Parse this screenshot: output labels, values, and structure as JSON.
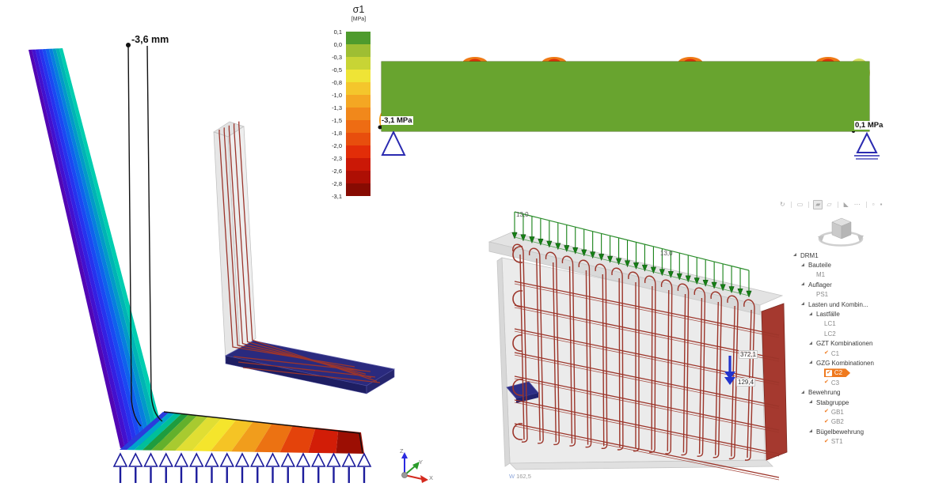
{
  "window": {
    "background": "#ffffff"
  },
  "legend": {
    "title": "σ1",
    "unit": "[MPa]",
    "labels": [
      "0,1",
      "0,0",
      "-0,3",
      "-0,5",
      "-0,8",
      "-1,0",
      "-1,3",
      "-1,5",
      "-1,8",
      "-2,0",
      "-2,3",
      "-2,6",
      "-2,8",
      "-3,1"
    ],
    "band_colors": [
      "#4e9b2d",
      "#9ebe33",
      "#c8d435",
      "#efe436",
      "#f4c62c",
      "#f4a723",
      "#f1881b",
      "#ee6c13",
      "#e84e0d",
      "#e22d08",
      "#cb1806",
      "#ae0f04",
      "#870b02"
    ]
  },
  "deformation_view": {
    "annotation": "-3,6 mm",
    "wall_band_colors": [
      "#5206b4",
      "#4310ce",
      "#3420e2",
      "#2633ee",
      "#1a49f2",
      "#0f62ec",
      "#077ede",
      "#029ac8",
      "#00b4b4",
      "#00cdb0"
    ],
    "base_band_colors": [
      "#2a3bdc",
      "#00a4cc",
      "#00bf9a",
      "#1f9c3e",
      "#63b02c",
      "#a8ca30",
      "#e0de33",
      "#f5e52c",
      "#f5c425",
      "#f19d1c",
      "#ec7212",
      "#e4430b",
      "#d21d07",
      "#9c0e03"
    ],
    "base_band_widths": [
      0.03,
      0.03,
      0.033,
      0.036,
      0.044,
      0.055,
      0.068,
      0.075,
      0.085,
      0.095,
      0.105,
      0.115,
      0.114,
      0.115
    ],
    "support": {
      "color": "#1c1c9c",
      "count": 17
    }
  },
  "model_view": {
    "body_color": "#ededed",
    "edge_color": "#bdbdbd",
    "rebar_color": "#9b352c",
    "plate_color": "#2a2a7e",
    "rebar_count": 5
  },
  "beam_view": {
    "min_label": "-3,1 MPa",
    "max_label": "0,1 MPa",
    "body_color": "#68a42f",
    "rebar_color": "#b23430",
    "hole_count": 6,
    "support_color": "#2a2ab0"
  },
  "wall_view": {
    "load_label": "13,0",
    "load_label2": "13,0",
    "load_color": "#158015",
    "load_arrow_count": 28,
    "reaction_labels": {
      "top": "372,1",
      "bottom": "129,4"
    },
    "reaction_color": "#2334cc",
    "rebar_color": "#9c352a",
    "edge_color": "#a5392f",
    "stirrup_count": 15,
    "horizontal_bar_rows": 7,
    "hook_count": 5,
    "dim_prefix": "W",
    "dim_value": "162,5"
  },
  "axes": {
    "x": {
      "label": "X",
      "color": "#d42a1e"
    },
    "y": {
      "label": "Y",
      "color": "#2a9c2a"
    },
    "z": {
      "label": "Z",
      "color": "#2a2ae0"
    }
  },
  "toolbar": {
    "icons": [
      {
        "name": "orbit-view-icon",
        "glyph": "↻"
      },
      {
        "name": "separator"
      },
      {
        "name": "measure-icon",
        "glyph": "▭"
      },
      {
        "name": "separator"
      },
      {
        "name": "solid-display-icon",
        "glyph": "▰",
        "active": true
      },
      {
        "name": "wireframe-display-icon",
        "glyph": "▱"
      },
      {
        "name": "separator"
      },
      {
        "name": "section-cut-icon",
        "glyph": "◣"
      },
      {
        "name": "more-options-icon",
        "glyph": "⋯"
      },
      {
        "name": "separator"
      },
      {
        "name": "grid-snap-icon",
        "glyph": "▫"
      },
      {
        "name": "settings-icon",
        "glyph": "▪"
      }
    ]
  },
  "tree": {
    "select_color": "#ef7a1f",
    "check_color": "#ef7a1f",
    "items": [
      {
        "label": "DRM1",
        "level": 0,
        "expander": true
      },
      {
        "label": "Bauteile",
        "level": 1,
        "expander": true
      },
      {
        "label": "M1",
        "level": 2
      },
      {
        "label": "Auflager",
        "level": 1,
        "expander": true
      },
      {
        "label": "PS1",
        "level": 2
      },
      {
        "label": "Lasten und Kombin...",
        "level": 1,
        "expander": true
      },
      {
        "label": "Lastfälle",
        "level": 2,
        "expander": true
      },
      {
        "label": "LC1",
        "level": 3
      },
      {
        "label": "LC2",
        "level": 3
      },
      {
        "label": "GZT Kombinationen",
        "level": 2,
        "expander": true
      },
      {
        "label": "C1",
        "level": 3,
        "checked": true
      },
      {
        "label": "GZG Kombinationen",
        "level": 2,
        "expander": true
      },
      {
        "label": "C2",
        "level": 3,
        "checked": true,
        "selected": true
      },
      {
        "label": "C3",
        "level": 3,
        "checked": true
      },
      {
        "label": "Bewehrung",
        "level": 1,
        "expander": true
      },
      {
        "label": "Stabgruppe",
        "level": 2,
        "expander": true
      },
      {
        "label": "GB1",
        "level": 3,
        "checked": true
      },
      {
        "label": "GB2",
        "level": 3,
        "checked": true
      },
      {
        "label": "Bügelbewehrung",
        "level": 2,
        "expander": true
      },
      {
        "label": "ST1",
        "level": 3,
        "checked": true
      }
    ]
  }
}
